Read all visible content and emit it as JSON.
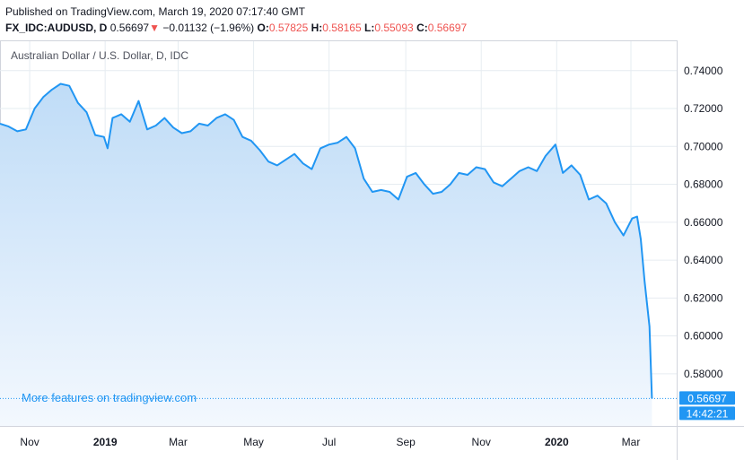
{
  "header": {
    "published": "Published on TradingView.com, March 19, 2020 07:17:40 GMT",
    "symbol": "FX_IDC:AUDUSD, D",
    "last": "0.56697",
    "arrow": "▼",
    "change": "−0.01132 (−1.96%)",
    "o_label": "O:",
    "o_value": "0.57825",
    "h_label": "H:",
    "h_value": "0.58165",
    "l_label": "L:",
    "l_value": "0.55093",
    "c_label": "C:",
    "c_value": "0.56697"
  },
  "chart_data": {
    "type": "area",
    "title": "Australian Dollar / U.S. Dollar, D, IDC",
    "watermark": "More features on tradingview.com",
    "y_ticks": [
      "0.74000",
      "0.72000",
      "0.70000",
      "0.68000",
      "0.66000",
      "0.64000",
      "0.62000",
      "0.60000",
      "0.58000"
    ],
    "ylim": [
      0.5525,
      0.7555
    ],
    "x_tick_labels": [
      "Nov",
      "2019",
      "Mar",
      "May",
      "Jul",
      "Sep",
      "Nov",
      "2020",
      "Mar"
    ],
    "x_tick_dates": [
      "2018-11-01",
      "2019-01-01",
      "2019-03-01",
      "2019-05-01",
      "2019-07-01",
      "2019-09-01",
      "2019-11-01",
      "2020-01-01",
      "2020-03-01"
    ],
    "x_range": [
      "2018-10-08",
      "2020-04-07"
    ],
    "last_price_label": "0.56697",
    "time_label": "14:42:21",
    "colors": {
      "line": "#2196f3",
      "fill_top": "#bfdcf7",
      "fill_bottom": "#f3f8fe",
      "price_box": "#2196f3",
      "time_box": "#2196f3",
      "grid": "#e6ecf1"
    },
    "series": [
      {
        "x": [
          "2018-10-08",
          "2018-10-15",
          "2018-10-22",
          "2018-10-29",
          "2018-11-05",
          "2018-11-12",
          "2018-11-19",
          "2018-11-26",
          "2018-12-03",
          "2018-12-10",
          "2018-12-17",
          "2018-12-24",
          "2018-12-31",
          "2019-01-03",
          "2019-01-07",
          "2019-01-14",
          "2019-01-21",
          "2019-01-28",
          "2019-02-04",
          "2019-02-11",
          "2019-02-18",
          "2019-02-25",
          "2019-03-04",
          "2019-03-11",
          "2019-03-18",
          "2019-03-25",
          "2019-04-01",
          "2019-04-08",
          "2019-04-15",
          "2019-04-22",
          "2019-04-29",
          "2019-05-06",
          "2019-05-13",
          "2019-05-20",
          "2019-05-27",
          "2019-06-03",
          "2019-06-10",
          "2019-06-17",
          "2019-06-24",
          "2019-07-01",
          "2019-07-08",
          "2019-07-15",
          "2019-07-22",
          "2019-07-29",
          "2019-08-05",
          "2019-08-12",
          "2019-08-19",
          "2019-08-26",
          "2019-09-02",
          "2019-09-09",
          "2019-09-16",
          "2019-09-23",
          "2019-09-30",
          "2019-10-07",
          "2019-10-14",
          "2019-10-21",
          "2019-10-28",
          "2019-11-04",
          "2019-11-11",
          "2019-11-18",
          "2019-11-25",
          "2019-12-02",
          "2019-12-09",
          "2019-12-16",
          "2019-12-23",
          "2019-12-31",
          "2020-01-06",
          "2020-01-13",
          "2020-01-20",
          "2020-01-27",
          "2020-02-03",
          "2020-02-10",
          "2020-02-17",
          "2020-02-24",
          "2020-03-02",
          "2020-03-06",
          "2020-03-09",
          "2020-03-12",
          "2020-03-16",
          "2020-03-18"
        ],
        "y": [
          0.712,
          0.7105,
          0.708,
          0.709,
          0.72,
          0.726,
          0.73,
          0.733,
          0.732,
          0.723,
          0.718,
          0.706,
          0.705,
          0.699,
          0.715,
          0.717,
          0.713,
          0.724,
          0.709,
          0.711,
          0.715,
          0.71,
          0.707,
          0.708,
          0.712,
          0.711,
          0.715,
          0.717,
          0.714,
          0.705,
          0.703,
          0.698,
          0.692,
          0.69,
          0.693,
          0.696,
          0.691,
          0.688,
          0.699,
          0.701,
          0.702,
          0.705,
          0.699,
          0.683,
          0.676,
          0.677,
          0.676,
          0.672,
          0.684,
          0.686,
          0.68,
          0.675,
          0.676,
          0.68,
          0.686,
          0.685,
          0.689,
          0.688,
          0.681,
          0.679,
          0.683,
          0.687,
          0.689,
          0.687,
          0.695,
          0.701,
          0.686,
          0.69,
          0.685,
          0.672,
          0.674,
          0.67,
          0.66,
          0.653,
          0.662,
          0.663,
          0.651,
          0.629,
          0.605,
          0.567
        ]
      }
    ]
  }
}
